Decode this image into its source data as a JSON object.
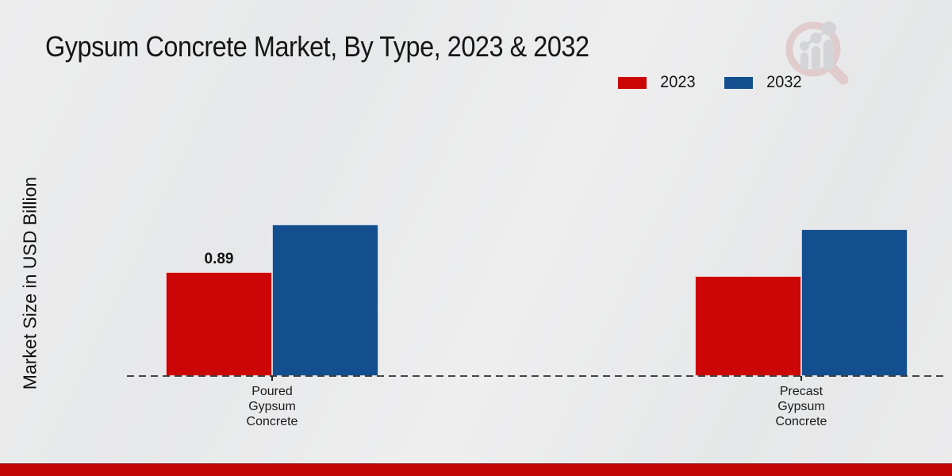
{
  "header": {
    "title": "Gypsum Concrete Market, By Type, 2023 & 2032"
  },
  "y_axis": {
    "label": "Market Size in USD Billion"
  },
  "branding": {
    "logo_icon": "magnifier-growth-chart-logo",
    "logo_ring_color": "#d9b4b4",
    "logo_bars_color": "#c3c4c8",
    "bottom_bar_color": "#c00606",
    "page_background": "#e9eaeb"
  },
  "chart_data": {
    "type": "bar",
    "title": "Gypsum Concrete Market, By Type, 2023 & 2032",
    "xlabel": "",
    "ylabel": "Market Size in USD Billion",
    "categories": [
      "Poured Gypsum Concrete",
      "Precast Gypsum Concrete"
    ],
    "series": [
      {
        "name": "2023",
        "color": "#cc0606",
        "values": [
          0.89,
          0.86
        ]
      },
      {
        "name": "2032",
        "color": "#134f8e",
        "values": [
          1.3,
          1.26
        ]
      }
    ],
    "value_labels": [
      {
        "series": "2023",
        "category": "Poured Gypsum Concrete",
        "text": "0.89"
      }
    ],
    "ylim": [
      0,
      1.45
    ],
    "grid": false,
    "legend_position": "top-right",
    "baseline": {
      "style": "dashed",
      "color": "#222222"
    }
  }
}
